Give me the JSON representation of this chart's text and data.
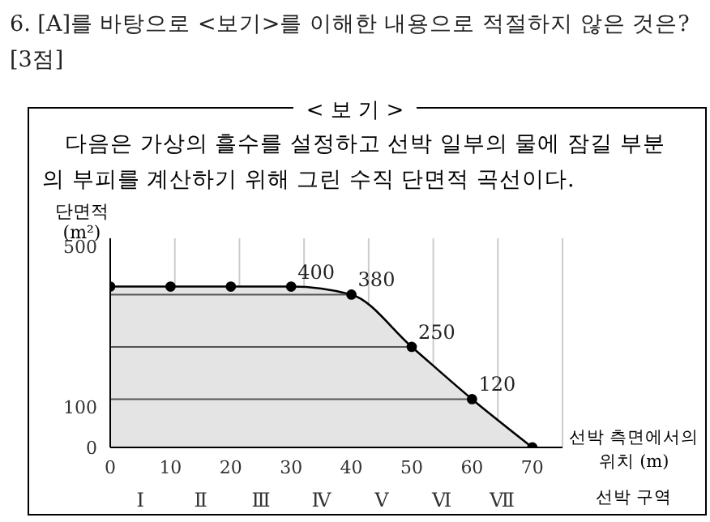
{
  "chart_data": {
    "type": "area",
    "title": "6. [A]를 바탕으로 <보기>를 이해한 내용으로 적절하지 않은 것은? [3점]",
    "subtitle": "< 보 기 >",
    "xlabel": "선박 측면에서의 위치 (m)",
    "ylabel": "단면적 (m²)",
    "x": [
      0,
      10,
      20,
      30,
      40,
      50,
      60,
      70
    ],
    "series": [
      {
        "color": "#000000",
        "values": [
          400,
          400,
          400,
          400,
          380,
          250,
          120,
          0
        ],
        "value_labels": [
          null,
          null,
          null,
          "400",
          "380",
          "250",
          "120",
          null
        ]
      }
    ],
    "xlim": [
      0,
      75
    ],
    "xticks": [
      0,
      10,
      20,
      30,
      40,
      50,
      60,
      70
    ],
    "ylim": [
      0,
      520
    ],
    "yticks": [
      0,
      100,
      500
    ],
    "grid": "x",
    "marker": "circle",
    "line_style": "solid",
    "ref_lines": [
      {
        "axis": "y",
        "value": 380,
        "color": "#555555"
      },
      {
        "axis": "y",
        "value": 250,
        "color": "#555555"
      },
      {
        "axis": "y",
        "value": 120,
        "color": "#555555"
      }
    ],
    "annotations": [
      "다음은 가상의 흘수를 설정하고 선박 일부의 물에 잠길 부분의 부피를 계산하기 위해 그린 수직 단면적 곡선이다.",
      "Ⅰ",
      "Ⅱ",
      "Ⅲ",
      "Ⅳ",
      "Ⅴ",
      "Ⅵ",
      "Ⅶ",
      "선박 구역"
    ]
  }
}
